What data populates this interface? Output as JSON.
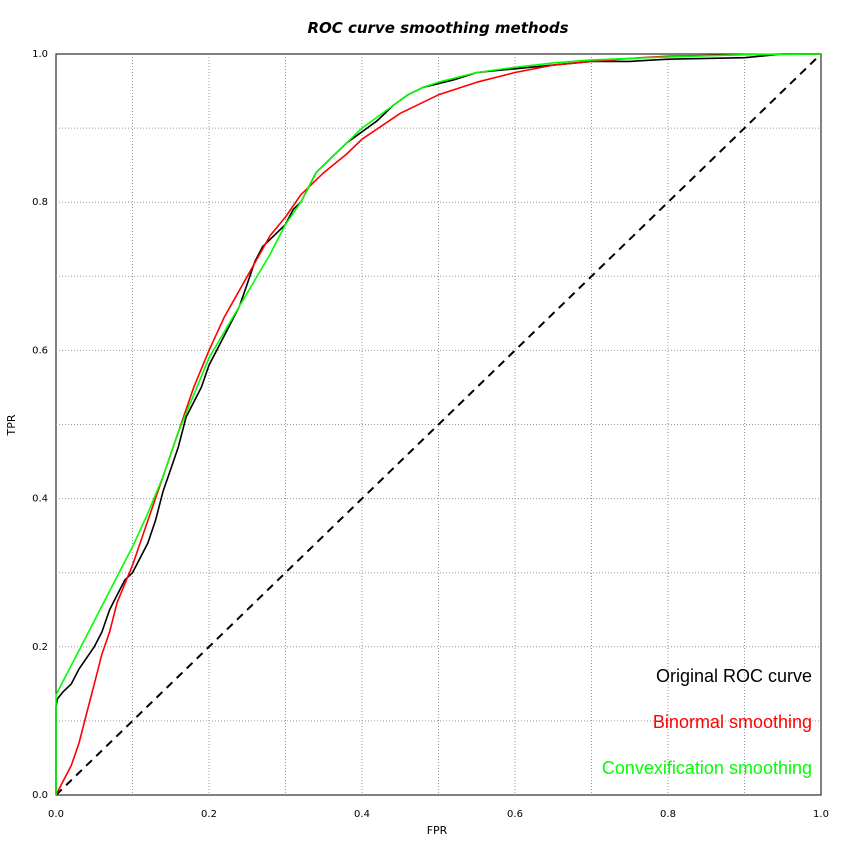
{
  "chart_data": {
    "type": "line",
    "title": "ROC curve smoothing methods",
    "xlabel": "FPR",
    "ylabel": "TPR",
    "xlim": [
      0,
      1
    ],
    "ylim": [
      0,
      1
    ],
    "grid": true,
    "legend_position": "bottom-right",
    "x_ticks": [
      "0.0",
      "0.2",
      "0.4",
      "0.6",
      "0.8",
      "1.0"
    ],
    "y_ticks": [
      "0.0",
      "0.2",
      "0.4",
      "0.6",
      "0.8",
      "1.0"
    ],
    "series": [
      {
        "name": "Original ROC curve",
        "color": "#000000",
        "x": [
          0,
          0,
          0.002,
          0.01,
          0.02,
          0.03,
          0.04,
          0.05,
          0.06,
          0.07,
          0.08,
          0.09,
          0.1,
          0.11,
          0.12,
          0.13,
          0.14,
          0.15,
          0.16,
          0.17,
          0.18,
          0.19,
          0.2,
          0.21,
          0.22,
          0.23,
          0.24,
          0.25,
          0.26,
          0.27,
          0.28,
          0.29,
          0.3,
          0.31,
          0.32,
          0.33,
          0.34,
          0.36,
          0.38,
          0.4,
          0.42,
          0.44,
          0.46,
          0.48,
          0.5,
          0.52,
          0.55,
          0.6,
          0.65,
          0.7,
          0.75,
          0.8,
          0.85,
          0.9,
          0.95,
          1.0
        ],
        "y": [
          0,
          0.12,
          0.13,
          0.14,
          0.15,
          0.17,
          0.185,
          0.2,
          0.22,
          0.25,
          0.27,
          0.29,
          0.3,
          0.32,
          0.34,
          0.37,
          0.41,
          0.44,
          0.47,
          0.51,
          0.53,
          0.55,
          0.58,
          0.6,
          0.62,
          0.64,
          0.66,
          0.69,
          0.72,
          0.74,
          0.75,
          0.76,
          0.77,
          0.79,
          0.8,
          0.82,
          0.84,
          0.86,
          0.88,
          0.895,
          0.91,
          0.93,
          0.945,
          0.955,
          0.96,
          0.965,
          0.975,
          0.98,
          0.985,
          0.99,
          0.99,
          0.993,
          0.994,
          0.995,
          1.0,
          1.0
        ]
      },
      {
        "name": "Binormal smoothing",
        "color": "#ff0000",
        "x": [
          0,
          0.005,
          0.01,
          0.02,
          0.03,
          0.04,
          0.05,
          0.06,
          0.07,
          0.08,
          0.1,
          0.12,
          0.14,
          0.16,
          0.18,
          0.2,
          0.22,
          0.25,
          0.28,
          0.3,
          0.32,
          0.35,
          0.38,
          0.4,
          0.45,
          0.5,
          0.55,
          0.6,
          0.65,
          0.7,
          0.75,
          0.8,
          0.85,
          0.9,
          0.95,
          1.0
        ],
        "y": [
          0,
          0.01,
          0.02,
          0.04,
          0.07,
          0.11,
          0.15,
          0.19,
          0.22,
          0.26,
          0.31,
          0.37,
          0.43,
          0.49,
          0.55,
          0.6,
          0.645,
          0.7,
          0.755,
          0.78,
          0.81,
          0.84,
          0.865,
          0.885,
          0.92,
          0.945,
          0.962,
          0.975,
          0.985,
          0.99,
          0.994,
          0.997,
          0.998,
          0.999,
          1.0,
          1.0
        ]
      },
      {
        "name": "Convexification smoothing",
        "color": "#00ff00",
        "x": [
          0,
          0,
          0.01,
          0.02,
          0.03,
          0.04,
          0.05,
          0.06,
          0.08,
          0.1,
          0.12,
          0.14,
          0.16,
          0.18,
          0.2,
          0.22,
          0.24,
          0.26,
          0.28,
          0.3,
          0.32,
          0.34,
          0.36,
          0.38,
          0.4,
          0.42,
          0.44,
          0.46,
          0.48,
          0.5,
          0.55,
          0.6,
          0.65,
          0.7,
          0.8,
          0.9,
          1.0
        ],
        "y": [
          0,
          0.135,
          0.155,
          0.175,
          0.195,
          0.215,
          0.235,
          0.255,
          0.295,
          0.335,
          0.38,
          0.43,
          0.49,
          0.54,
          0.59,
          0.625,
          0.66,
          0.695,
          0.73,
          0.77,
          0.8,
          0.84,
          0.86,
          0.88,
          0.9,
          0.915,
          0.93,
          0.945,
          0.955,
          0.962,
          0.975,
          0.982,
          0.988,
          0.992,
          0.996,
          0.999,
          1.0
        ]
      },
      {
        "name": "",
        "color": "#000000",
        "dashed": true,
        "x": [
          0,
          1
        ],
        "y": [
          0,
          1
        ]
      }
    ]
  }
}
